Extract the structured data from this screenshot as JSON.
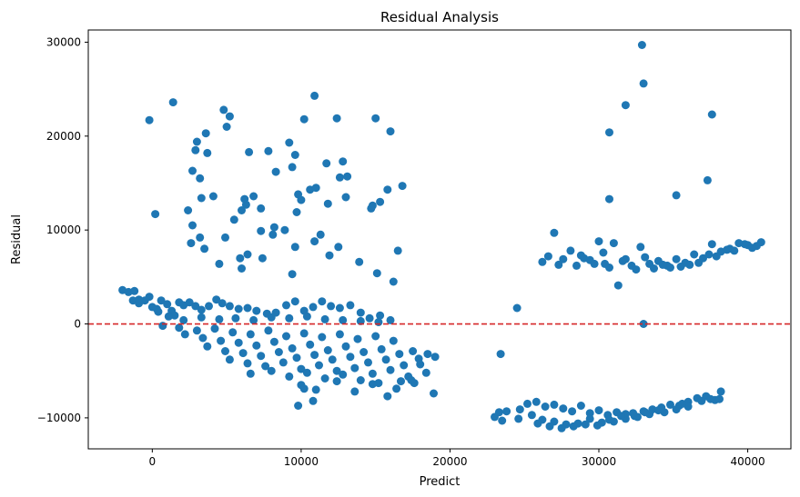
{
  "chart_data": {
    "type": "scatter",
    "title": "Residual Analysis",
    "xlabel": "Predict",
    "ylabel": "Residual",
    "xlim": [
      -4300,
      42900
    ],
    "ylim": [
      -13300,
      31300
    ],
    "xticks": [
      0,
      10000,
      20000,
      30000,
      40000
    ],
    "yticks": [
      -10000,
      0,
      10000,
      20000,
      30000
    ],
    "grid": false,
    "series_color": "#1f77b4",
    "reference_line": {
      "y": 0,
      "color": "#d62728",
      "style": "dashed"
    },
    "points_outliers": [
      [
        -200,
        21700
      ],
      [
        1400,
        23600
      ],
      [
        4800,
        22800
      ],
      [
        5200,
        22100
      ],
      [
        10900,
        24300
      ],
      [
        12400,
        21900
      ],
      [
        10200,
        21800
      ],
      [
        15000,
        21900
      ],
      [
        16000,
        20500
      ],
      [
        3600,
        20300
      ],
      [
        3000,
        19400
      ],
      [
        9200,
        19300
      ],
      [
        5000,
        21000
      ],
      [
        2900,
        18500
      ],
      [
        3700,
        18200
      ],
      [
        6500,
        18300
      ],
      [
        7800,
        18400
      ],
      [
        9600,
        18000
      ],
      [
        11700,
        17100
      ],
      [
        12800,
        17300
      ],
      [
        2700,
        16300
      ],
      [
        3200,
        15500
      ],
      [
        8300,
        16200
      ],
      [
        9400,
        16700
      ],
      [
        10600,
        14300
      ],
      [
        11000,
        14500
      ],
      [
        13100,
        15700
      ],
      [
        12600,
        15600
      ],
      [
        3300,
        13400
      ],
      [
        4100,
        13600
      ],
      [
        6200,
        13300
      ],
      [
        6800,
        13600
      ],
      [
        9800,
        13800
      ],
      [
        13000,
        13500
      ],
      [
        14700,
        12300
      ],
      [
        14800,
        12600
      ],
      [
        15300,
        13000
      ],
      [
        15800,
        14300
      ],
      [
        16800,
        14700
      ],
      [
        2400,
        12100
      ],
      [
        6000,
        12100
      ],
      [
        7300,
        12300
      ],
      [
        6300,
        12700
      ],
      [
        5500,
        11100
      ],
      [
        9700,
        11900
      ],
      [
        10000,
        13200
      ],
      [
        11800,
        12800
      ],
      [
        2700,
        10500
      ],
      [
        200,
        11700
      ],
      [
        8200,
        10300
      ],
      [
        8900,
        10000
      ],
      [
        7300,
        9900
      ],
      [
        3200,
        9200
      ],
      [
        4900,
        9200
      ],
      [
        8100,
        9500
      ],
      [
        11300,
        9500
      ],
      [
        2600,
        8600
      ],
      [
        3500,
        8000
      ],
      [
        5900,
        7000
      ],
      [
        6400,
        7400
      ],
      [
        9600,
        8200
      ],
      [
        10900,
        8800
      ],
      [
        11900,
        7300
      ],
      [
        12500,
        8200
      ],
      [
        16500,
        7800
      ],
      [
        13900,
        6600
      ],
      [
        7400,
        7000
      ],
      [
        4500,
        6400
      ],
      [
        6000,
        5900
      ],
      [
        9400,
        5300
      ],
      [
        15100,
        5400
      ],
      [
        16200,
        4500
      ],
      [
        32900,
        29700
      ],
      [
        33000,
        25600
      ],
      [
        31800,
        23300
      ],
      [
        37600,
        22300
      ],
      [
        30700,
        20400
      ],
      [
        30700,
        13300
      ],
      [
        35200,
        13700
      ],
      [
        37300,
        15300
      ],
      [
        24500,
        1700
      ],
      [
        23400,
        -3200
      ],
      [
        33000,
        0
      ]
    ],
    "points_dense": [
      [
        -2000,
        3600
      ],
      [
        -1600,
        3400
      ],
      [
        -1200,
        3500
      ],
      [
        -1300,
        2500
      ],
      [
        -900,
        2200
      ],
      [
        -500,
        2500
      ],
      [
        -200,
        2900
      ],
      [
        0,
        1800
      ],
      [
        300,
        1600
      ],
      [
        600,
        2500
      ],
      [
        1000,
        2100
      ],
      [
        1300,
        1400
      ],
      [
        1500,
        900
      ],
      [
        1800,
        2300
      ],
      [
        2100,
        2000
      ],
      [
        2500,
        2300
      ],
      [
        2900,
        1900
      ],
      [
        3300,
        1500
      ],
      [
        3800,
        1900
      ],
      [
        4300,
        2600
      ],
      [
        4700,
        2200
      ],
      [
        5200,
        1900
      ],
      [
        5800,
        1600
      ],
      [
        6400,
        1700
      ],
      [
        7000,
        1400
      ],
      [
        7700,
        1100
      ],
      [
        8300,
        1200
      ],
      [
        9000,
        2000
      ],
      [
        9600,
        2400
      ],
      [
        10200,
        1400
      ],
      [
        10800,
        1800
      ],
      [
        11400,
        2400
      ],
      [
        12000,
        1900
      ],
      [
        12600,
        1700
      ],
      [
        13300,
        2000
      ],
      [
        14000,
        1200
      ],
      [
        14600,
        600
      ],
      [
        15300,
        900
      ],
      [
        16000,
        400
      ],
      [
        -900,
        2600
      ],
      [
        400,
        1300
      ],
      [
        1100,
        800
      ],
      [
        2100,
        400
      ],
      [
        3300,
        700
      ],
      [
        4500,
        500
      ],
      [
        5600,
        600
      ],
      [
        6800,
        400
      ],
      [
        8000,
        700
      ],
      [
        9200,
        600
      ],
      [
        10400,
        800
      ],
      [
        11600,
        500
      ],
      [
        12800,
        400
      ],
      [
        14000,
        300
      ],
      [
        15200,
        200
      ],
      [
        700,
        -200
      ],
      [
        1800,
        -400
      ],
      [
        3000,
        -700
      ],
      [
        4200,
        -500
      ],
      [
        5400,
        -900
      ],
      [
        6600,
        -1100
      ],
      [
        7800,
        -700
      ],
      [
        9000,
        -1300
      ],
      [
        10200,
        -1000
      ],
      [
        11400,
        -1400
      ],
      [
        12600,
        -1100
      ],
      [
        13800,
        -1600
      ],
      [
        15000,
        -1300
      ],
      [
        16200,
        -1800
      ],
      [
        2200,
        -1100
      ],
      [
        3400,
        -1500
      ],
      [
        4600,
        -1800
      ],
      [
        5800,
        -2000
      ],
      [
        7000,
        -2300
      ],
      [
        8200,
        -1900
      ],
      [
        9400,
        -2600
      ],
      [
        10600,
        -2200
      ],
      [
        11800,
        -2800
      ],
      [
        13000,
        -2400
      ],
      [
        14200,
        -3000
      ],
      [
        15400,
        -2700
      ],
      [
        16600,
        -3200
      ],
      [
        17500,
        -2900
      ],
      [
        18500,
        -3200
      ],
      [
        3700,
        -2400
      ],
      [
        4900,
        -2900
      ],
      [
        6100,
        -3100
      ],
      [
        7300,
        -3400
      ],
      [
        8500,
        -3000
      ],
      [
        9700,
        -3600
      ],
      [
        10900,
        -3300
      ],
      [
        12100,
        -3800
      ],
      [
        13300,
        -3500
      ],
      [
        14500,
        -4100
      ],
      [
        15700,
        -3800
      ],
      [
        16900,
        -4400
      ],
      [
        17900,
        -3700
      ],
      [
        5200,
        -3800
      ],
      [
        6400,
        -4200
      ],
      [
        7600,
        -4500
      ],
      [
        8800,
        -4100
      ],
      [
        10000,
        -4800
      ],
      [
        11200,
        -4400
      ],
      [
        12400,
        -5000
      ],
      [
        13600,
        -4700
      ],
      [
        14800,
        -5300
      ],
      [
        16000,
        -4900
      ],
      [
        17200,
        -5600
      ],
      [
        18400,
        -5200
      ],
      [
        6600,
        -5300
      ],
      [
        8000,
        -5000
      ],
      [
        9200,
        -5600
      ],
      [
        10400,
        -5200
      ],
      [
        11600,
        -5800
      ],
      [
        12800,
        -5400
      ],
      [
        14000,
        -6000
      ],
      [
        15200,
        -6300
      ],
      [
        16400,
        -6900
      ],
      [
        17600,
        -6300
      ],
      [
        18900,
        -7400
      ],
      [
        10000,
        -6500
      ],
      [
        10200,
        -6900
      ],
      [
        11000,
        -7000
      ],
      [
        12400,
        -6100
      ],
      [
        13600,
        -7200
      ],
      [
        14800,
        -6400
      ],
      [
        15800,
        -7700
      ],
      [
        16700,
        -6100
      ],
      [
        9800,
        -8700
      ],
      [
        10800,
        -8200
      ],
      [
        17400,
        -6000
      ],
      [
        19000,
        -3500
      ],
      [
        18000,
        -4300
      ],
      [
        27000,
        9700
      ],
      [
        26200,
        6600
      ],
      [
        27600,
        6900
      ],
      [
        28100,
        7800
      ],
      [
        28800,
        7300
      ],
      [
        29400,
        6800
      ],
      [
        30000,
        8800
      ],
      [
        30400,
        6400
      ],
      [
        31000,
        8600
      ],
      [
        31600,
        6700
      ],
      [
        32200,
        6200
      ],
      [
        32800,
        8200
      ],
      [
        33400,
        6400
      ],
      [
        34000,
        6700
      ],
      [
        34600,
        6200
      ],
      [
        35200,
        6900
      ],
      [
        35800,
        6500
      ],
      [
        36400,
        7400
      ],
      [
        37000,
        7000
      ],
      [
        37600,
        8500
      ],
      [
        38200,
        7700
      ],
      [
        38800,
        8000
      ],
      [
        39400,
        8600
      ],
      [
        40000,
        8400
      ],
      [
        40600,
        8300
      ],
      [
        26600,
        7200
      ],
      [
        27300,
        6300
      ],
      [
        28500,
        6200
      ],
      [
        29700,
        6400
      ],
      [
        30700,
        6000
      ],
      [
        31300,
        4100
      ],
      [
        32500,
        5800
      ],
      [
        33700,
        5900
      ],
      [
        34300,
        6300
      ],
      [
        35500,
        6100
      ],
      [
        36700,
        6500
      ],
      [
        37900,
        7200
      ],
      [
        39100,
        7800
      ],
      [
        40300,
        8100
      ],
      [
        40900,
        8700
      ],
      [
        29000,
        7000
      ],
      [
        30300,
        7600
      ],
      [
        31800,
        6900
      ],
      [
        33100,
        7100
      ],
      [
        34800,
        6000
      ],
      [
        36100,
        6300
      ],
      [
        37400,
        7400
      ],
      [
        38600,
        7900
      ],
      [
        39800,
        8500
      ],
      [
        23000,
        -9900
      ],
      [
        23300,
        -9400
      ],
      [
        23800,
        -9300
      ],
      [
        24700,
        -9100
      ],
      [
        25200,
        -8500
      ],
      [
        25800,
        -8300
      ],
      [
        26400,
        -8800
      ],
      [
        27000,
        -8600
      ],
      [
        27600,
        -9000
      ],
      [
        28200,
        -9300
      ],
      [
        28800,
        -8700
      ],
      [
        29400,
        -9500
      ],
      [
        30000,
        -9200
      ],
      [
        30600,
        -9700
      ],
      [
        31200,
        -9400
      ],
      [
        31800,
        -9600
      ],
      [
        32400,
        -9800
      ],
      [
        33000,
        -9300
      ],
      [
        33600,
        -9100
      ],
      [
        34200,
        -8900
      ],
      [
        34800,
        -8600
      ],
      [
        35400,
        -8700
      ],
      [
        36000,
        -8300
      ],
      [
        36600,
        -7900
      ],
      [
        37200,
        -7700
      ],
      [
        37800,
        -8100
      ],
      [
        38200,
        -7200
      ],
      [
        38100,
        -8000
      ],
      [
        23500,
        -10300
      ],
      [
        24600,
        -10100
      ],
      [
        25500,
        -9700
      ],
      [
        26200,
        -10200
      ],
      [
        27000,
        -10400
      ],
      [
        27800,
        -10700
      ],
      [
        28600,
        -10600
      ],
      [
        29400,
        -10100
      ],
      [
        30200,
        -10500
      ],
      [
        31000,
        -10400
      ],
      [
        31800,
        -10100
      ],
      [
        32600,
        -9900
      ],
      [
        33400,
        -9600
      ],
      [
        34400,
        -9400
      ],
      [
        35200,
        -9100
      ],
      [
        36000,
        -8800
      ],
      [
        25900,
        -10600
      ],
      [
        26700,
        -10900
      ],
      [
        27500,
        -11100
      ],
      [
        28300,
        -10900
      ],
      [
        29100,
        -10700
      ],
      [
        29900,
        -10800
      ],
      [
        30700,
        -10200
      ],
      [
        31500,
        -9800
      ],
      [
        32300,
        -9500
      ],
      [
        33100,
        -9400
      ],
      [
        34000,
        -9200
      ],
      [
        35600,
        -8500
      ],
      [
        36900,
        -8200
      ],
      [
        37500,
        -8000
      ]
    ]
  }
}
